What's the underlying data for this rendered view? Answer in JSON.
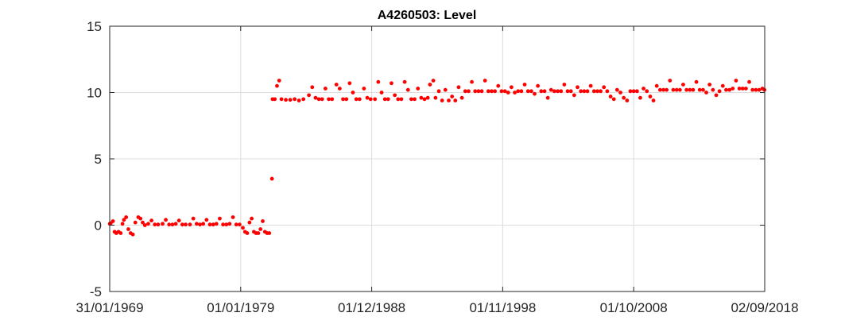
{
  "chart_data": {
    "type": "scatter",
    "title": "A4260503: Level",
    "xlabel": "",
    "ylabel": "",
    "xlim": [
      "1969-01-31",
      "2018-09-02"
    ],
    "ylim": [
      -5,
      15
    ],
    "grid": true,
    "legend": "none",
    "marker_color": "#ff0000",
    "x_ticks": [
      "31/01/1969",
      "01/01/1979",
      "01/12/1988",
      "01/11/1998",
      "01/10/2008",
      "02/09/2018"
    ],
    "y_ticks": [
      "-5",
      "0",
      "5",
      "10",
      "15"
    ],
    "series": [
      {
        "points": [
          [
            "1969-02-01",
            0.1
          ],
          [
            "1969-03-01",
            0.15
          ],
          [
            "1969-05-01",
            0.3
          ],
          [
            "1969-06-15",
            -0.5
          ],
          [
            "1969-08-01",
            -0.6
          ],
          [
            "1969-10-01",
            -0.5
          ],
          [
            "1969-12-01",
            -0.6
          ],
          [
            "1970-01-20",
            0.1
          ],
          [
            "1970-03-01",
            0.4
          ],
          [
            "1970-05-01",
            0.6
          ],
          [
            "1970-07-01",
            -0.3
          ],
          [
            "1970-09-01",
            -0.6
          ],
          [
            "1970-11-01",
            -0.7
          ],
          [
            "1971-01-10",
            0.2
          ],
          [
            "1971-04-01",
            0.6
          ],
          [
            "1971-06-01",
            0.5
          ],
          [
            "1971-08-01",
            0.2
          ],
          [
            "1971-10-01",
            0.0
          ],
          [
            "1972-01-01",
            0.1
          ],
          [
            "1972-04-01",
            0.35
          ],
          [
            "1972-07-01",
            0.05
          ],
          [
            "1972-10-01",
            0.05
          ],
          [
            "1973-02-01",
            0.1
          ],
          [
            "1973-05-01",
            0.4
          ],
          [
            "1973-08-01",
            0.05
          ],
          [
            "1973-11-01",
            0.05
          ],
          [
            "1974-02-01",
            0.1
          ],
          [
            "1974-05-01",
            0.35
          ],
          [
            "1974-08-01",
            0.05
          ],
          [
            "1974-11-01",
            0.05
          ],
          [
            "1975-03-01",
            0.05
          ],
          [
            "1975-06-01",
            0.5
          ],
          [
            "1975-09-01",
            0.1
          ],
          [
            "1975-12-01",
            0.05
          ],
          [
            "1976-03-01",
            0.1
          ],
          [
            "1976-06-01",
            0.4
          ],
          [
            "1976-09-01",
            0.05
          ],
          [
            "1976-12-01",
            0.05
          ],
          [
            "1977-03-01",
            0.1
          ],
          [
            "1977-06-01",
            0.5
          ],
          [
            "1977-09-01",
            0.05
          ],
          [
            "1977-12-01",
            0.05
          ],
          [
            "1978-03-01",
            0.1
          ],
          [
            "1978-06-01",
            0.6
          ],
          [
            "1978-09-01",
            0.05
          ],
          [
            "1978-12-01",
            0.05
          ],
          [
            "1979-03-01",
            -0.2
          ],
          [
            "1979-05-01",
            -0.5
          ],
          [
            "1979-07-01",
            -0.6
          ],
          [
            "1979-09-01",
            0.2
          ],
          [
            "1979-11-01",
            0.5
          ],
          [
            "1980-01-01",
            -0.5
          ],
          [
            "1980-03-01",
            -0.6
          ],
          [
            "1980-05-01",
            -0.6
          ],
          [
            "1980-07-01",
            -0.3
          ],
          [
            "1980-09-01",
            0.3
          ],
          [
            "1980-11-01",
            -0.5
          ],
          [
            "1981-01-01",
            -0.6
          ],
          [
            "1981-03-01",
            -0.6
          ],
          [
            "1981-05-15",
            3.5
          ],
          [
            "1981-06-01",
            9.5
          ],
          [
            "1981-08-01",
            9.5
          ],
          [
            "1981-10-01",
            10.5
          ],
          [
            "1981-12-01",
            10.9
          ],
          [
            "1982-02-01",
            9.5
          ],
          [
            "1982-06-01",
            9.45
          ],
          [
            "1982-10-01",
            9.45
          ],
          [
            "1983-02-01",
            9.5
          ],
          [
            "1983-06-01",
            9.4
          ],
          [
            "1983-10-01",
            9.5
          ],
          [
            "1984-03-01",
            9.8
          ],
          [
            "1984-06-01",
            10.4
          ],
          [
            "1984-09-01",
            9.6
          ],
          [
            "1984-12-01",
            9.5
          ],
          [
            "1985-03-01",
            9.5
          ],
          [
            "1985-06-01",
            10.3
          ],
          [
            "1985-09-01",
            9.5
          ],
          [
            "1985-12-01",
            9.5
          ],
          [
            "1986-04-01",
            10.6
          ],
          [
            "1986-07-01",
            10.3
          ],
          [
            "1986-10-01",
            9.5
          ],
          [
            "1987-01-01",
            9.5
          ],
          [
            "1987-04-01",
            10.7
          ],
          [
            "1987-07-01",
            10.0
          ],
          [
            "1987-10-01",
            9.5
          ],
          [
            "1988-01-01",
            9.5
          ],
          [
            "1988-05-01",
            10.3
          ],
          [
            "1988-08-01",
            9.6
          ],
          [
            "1988-11-01",
            9.5
          ],
          [
            "1989-03-01",
            9.5
          ],
          [
            "1989-06-01",
            10.8
          ],
          [
            "1989-09-01",
            10.0
          ],
          [
            "1989-12-01",
            9.5
          ],
          [
            "1990-03-01",
            9.5
          ],
          [
            "1990-06-01",
            10.7
          ],
          [
            "1990-09-01",
            9.8
          ],
          [
            "1990-12-01",
            9.5
          ],
          [
            "1991-03-01",
            9.5
          ],
          [
            "1991-06-01",
            10.8
          ],
          [
            "1991-09-01",
            10.2
          ],
          [
            "1991-12-01",
            9.5
          ],
          [
            "1992-03-01",
            9.5
          ],
          [
            "1992-06-01",
            10.3
          ],
          [
            "1992-09-01",
            9.6
          ],
          [
            "1992-12-01",
            9.5
          ],
          [
            "1993-03-01",
            9.6
          ],
          [
            "1993-05-01",
            10.6
          ],
          [
            "1993-08-01",
            10.9
          ],
          [
            "1993-10-01",
            9.6
          ],
          [
            "1994-01-01",
            10.1
          ],
          [
            "1994-04-01",
            9.4
          ],
          [
            "1994-07-01",
            10.2
          ],
          [
            "1994-10-01",
            9.4
          ],
          [
            "1995-01-01",
            9.7
          ],
          [
            "1995-04-01",
            9.4
          ],
          [
            "1995-07-01",
            10.4
          ],
          [
            "1995-10-01",
            9.6
          ],
          [
            "1996-01-01",
            10.1
          ],
          [
            "1996-04-01",
            10.1
          ],
          [
            "1996-07-01",
            10.8
          ],
          [
            "1996-10-01",
            10.1
          ],
          [
            "1997-01-01",
            10.1
          ],
          [
            "1997-04-01",
            10.1
          ],
          [
            "1997-07-01",
            10.9
          ],
          [
            "1997-10-01",
            10.1
          ],
          [
            "1998-01-01",
            10.1
          ],
          [
            "1998-04-01",
            10.1
          ],
          [
            "1998-07-01",
            10.5
          ],
          [
            "1998-10-01",
            10.1
          ],
          [
            "1999-01-01",
            10.1
          ],
          [
            "1999-04-01",
            10.0
          ],
          [
            "1999-07-01",
            10.4
          ],
          [
            "1999-10-01",
            10.0
          ],
          [
            "2000-01-01",
            10.1
          ],
          [
            "2000-04-01",
            10.1
          ],
          [
            "2000-07-01",
            10.6
          ],
          [
            "2000-10-01",
            10.1
          ],
          [
            "2001-01-01",
            10.1
          ],
          [
            "2001-04-01",
            9.9
          ],
          [
            "2001-07-01",
            10.5
          ],
          [
            "2001-10-01",
            10.1
          ],
          [
            "2002-01-01",
            10.1
          ],
          [
            "2002-04-01",
            9.6
          ],
          [
            "2002-07-01",
            10.2
          ],
          [
            "2002-10-01",
            10.1
          ],
          [
            "2003-01-01",
            10.1
          ],
          [
            "2003-04-01",
            10.1
          ],
          [
            "2003-07-01",
            10.6
          ],
          [
            "2003-10-01",
            10.1
          ],
          [
            "2004-01-01",
            10.1
          ],
          [
            "2004-04-01",
            9.8
          ],
          [
            "2004-07-01",
            10.4
          ],
          [
            "2004-10-01",
            10.1
          ],
          [
            "2005-01-01",
            10.1
          ],
          [
            "2005-04-01",
            10.1
          ],
          [
            "2005-07-01",
            10.5
          ],
          [
            "2005-10-01",
            10.1
          ],
          [
            "2006-01-01",
            10.1
          ],
          [
            "2006-04-01",
            10.1
          ],
          [
            "2006-07-01",
            10.4
          ],
          [
            "2006-10-01",
            10.1
          ],
          [
            "2007-01-01",
            9.7
          ],
          [
            "2007-04-01",
            9.5
          ],
          [
            "2007-07-01",
            10.2
          ],
          [
            "2007-10-01",
            10.0
          ],
          [
            "2008-01-01",
            9.6
          ],
          [
            "2008-04-01",
            9.4
          ],
          [
            "2008-07-01",
            10.1
          ],
          [
            "2008-10-01",
            10.1
          ],
          [
            "2009-01-01",
            10.1
          ],
          [
            "2009-04-01",
            9.6
          ],
          [
            "2009-07-01",
            10.3
          ],
          [
            "2009-10-01",
            10.1
          ],
          [
            "2010-01-01",
            9.7
          ],
          [
            "2010-04-01",
            9.4
          ],
          [
            "2010-07-01",
            10.5
          ],
          [
            "2010-10-01",
            10.2
          ],
          [
            "2011-01-01",
            10.2
          ],
          [
            "2011-04-01",
            10.2
          ],
          [
            "2011-07-01",
            10.9
          ],
          [
            "2011-10-01",
            10.2
          ],
          [
            "2012-01-01",
            10.2
          ],
          [
            "2012-04-01",
            10.2
          ],
          [
            "2012-07-01",
            10.6
          ],
          [
            "2012-10-01",
            10.2
          ],
          [
            "2013-01-01",
            10.2
          ],
          [
            "2013-04-01",
            10.2
          ],
          [
            "2013-07-01",
            10.8
          ],
          [
            "2013-10-01",
            10.2
          ],
          [
            "2014-01-01",
            10.2
          ],
          [
            "2014-04-01",
            10.0
          ],
          [
            "2014-07-01",
            10.6
          ],
          [
            "2014-10-01",
            10.2
          ],
          [
            "2015-01-01",
            9.8
          ],
          [
            "2015-04-01",
            10.1
          ],
          [
            "2015-07-01",
            10.5
          ],
          [
            "2015-10-01",
            10.2
          ],
          [
            "2016-01-01",
            10.2
          ],
          [
            "2016-04-01",
            10.3
          ],
          [
            "2016-07-01",
            10.9
          ],
          [
            "2016-10-01",
            10.3
          ],
          [
            "2017-01-01",
            10.3
          ],
          [
            "2017-04-01",
            10.3
          ],
          [
            "2017-07-01",
            10.8
          ],
          [
            "2017-10-01",
            10.2
          ],
          [
            "2018-01-01",
            10.2
          ],
          [
            "2018-04-01",
            10.2
          ],
          [
            "2018-07-01",
            10.3
          ],
          [
            "2018-08-25",
            10.2
          ]
        ]
      }
    ]
  }
}
